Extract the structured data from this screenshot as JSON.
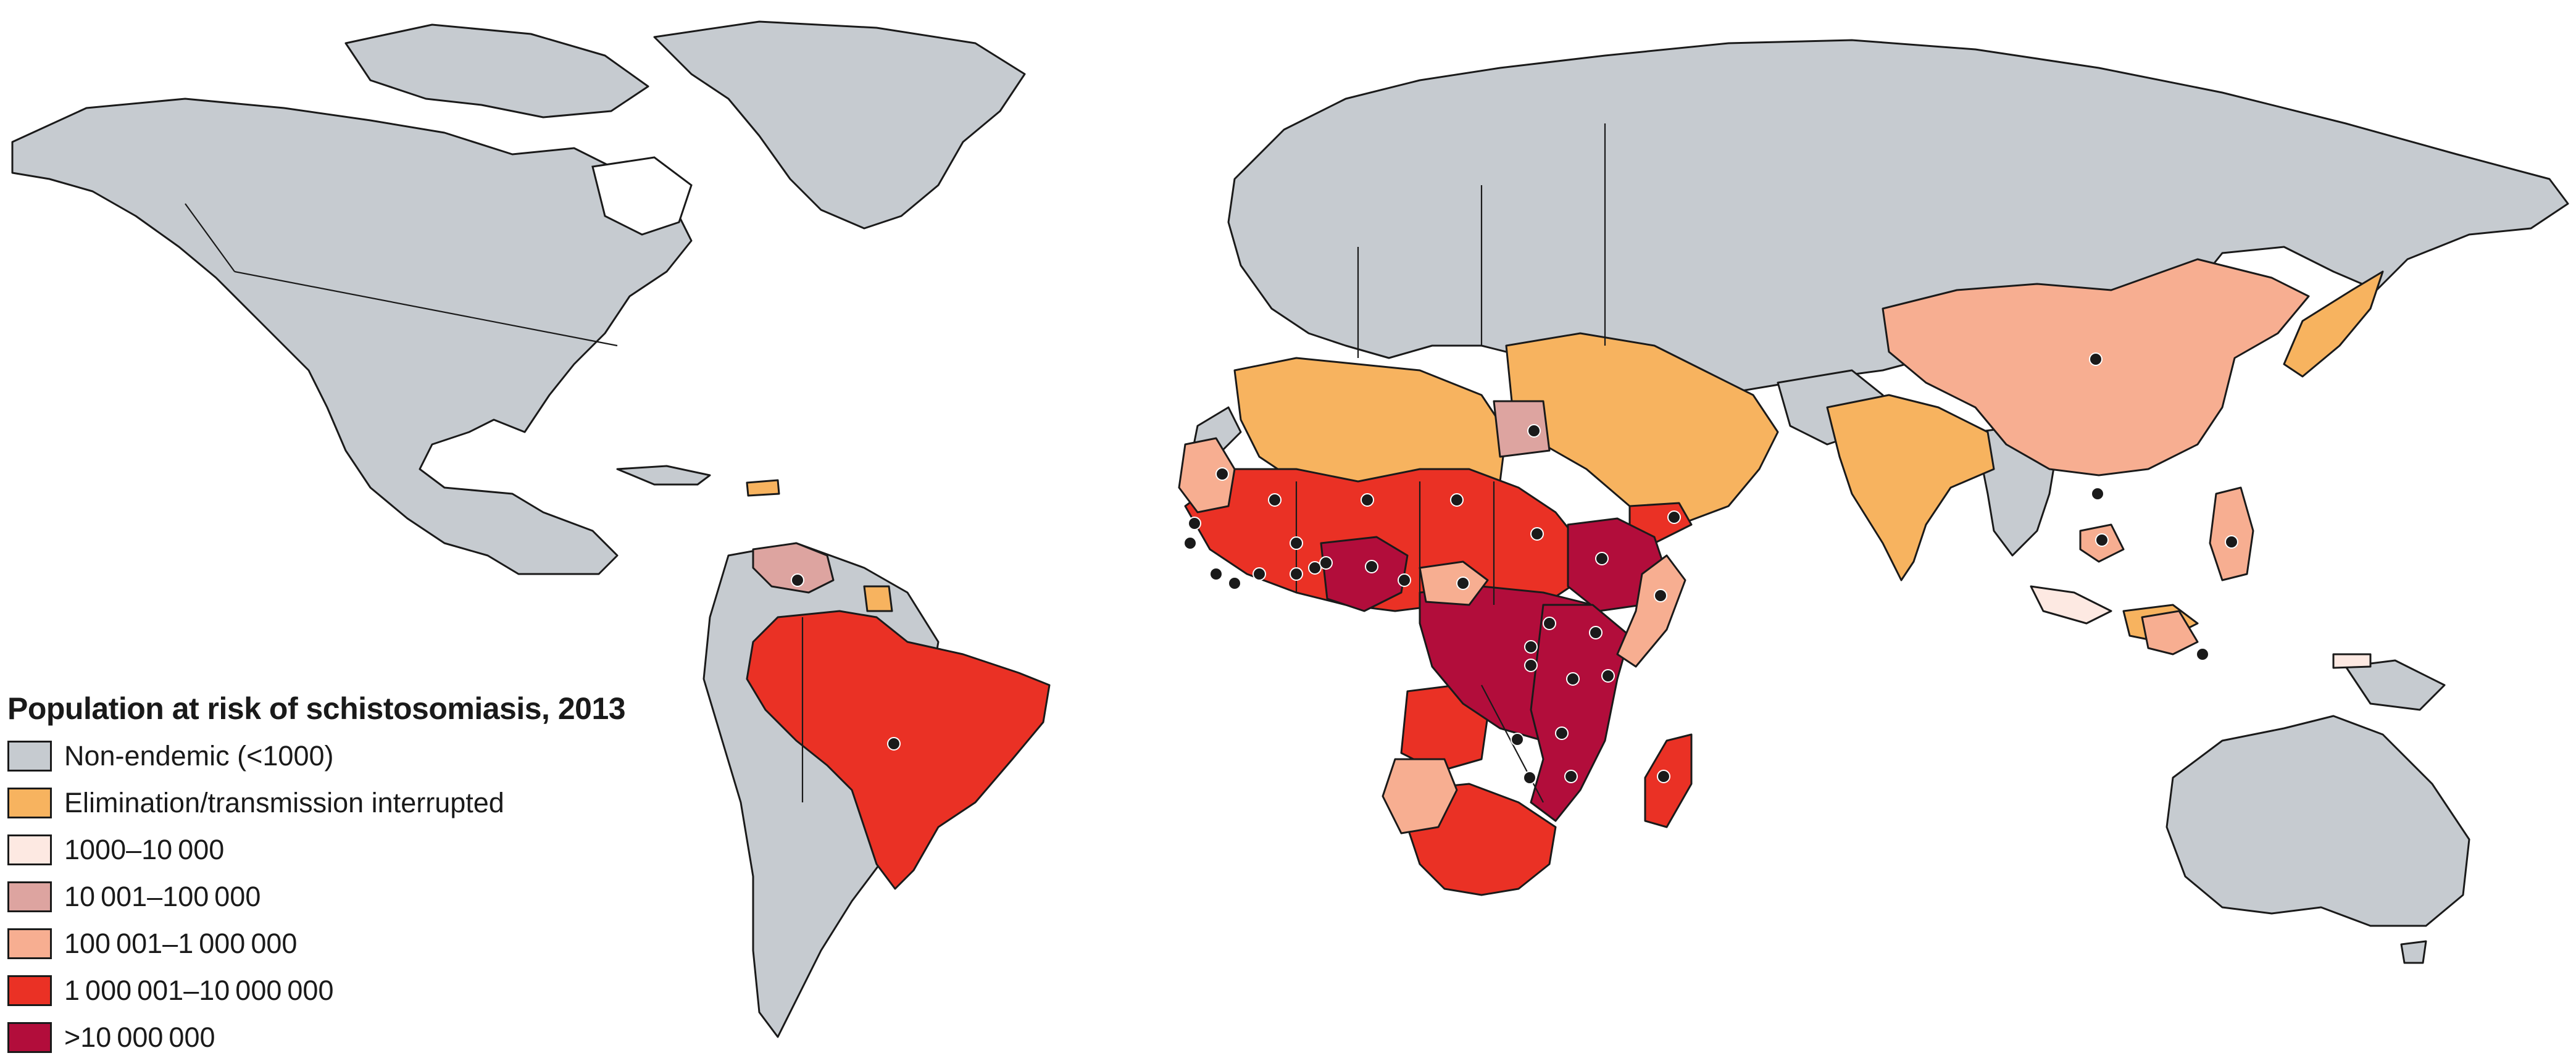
{
  "legend": {
    "title": "Population at risk of schistosomiasis, 2013",
    "items": [
      {
        "label": "Non-endemic (<1000)",
        "color": "#c6cbd0"
      },
      {
        "label": "Elimination/transmission interrupted",
        "color": "#f7b35f"
      },
      {
        "label": "1000–10 000",
        "color": "#fde9e2"
      },
      {
        "label": "10 001–100 000",
        "color": "#dda4a0"
      },
      {
        "label": "100 001–1 000 000",
        "color": "#f7ae91"
      },
      {
        "label": "1 000 001–10 000 000",
        "color": "#ea3125"
      },
      {
        "label": ">10 000 000",
        "color": "#b20d3b"
      }
    ]
  },
  "colors": {
    "ocean": "#ffffff",
    "non_endemic": "#c6cbd0",
    "eliminated": "#f7b35f",
    "cat_1k_10k": "#fde9e2",
    "cat_10k_100k": "#dda4a0",
    "cat_100k_1m": "#f7ae91",
    "cat_1m_10m": "#ea3125",
    "cat_10m_plus": "#b20d3b",
    "outline": "#1a1a1a",
    "marker": "#1a1a1a"
  }
}
